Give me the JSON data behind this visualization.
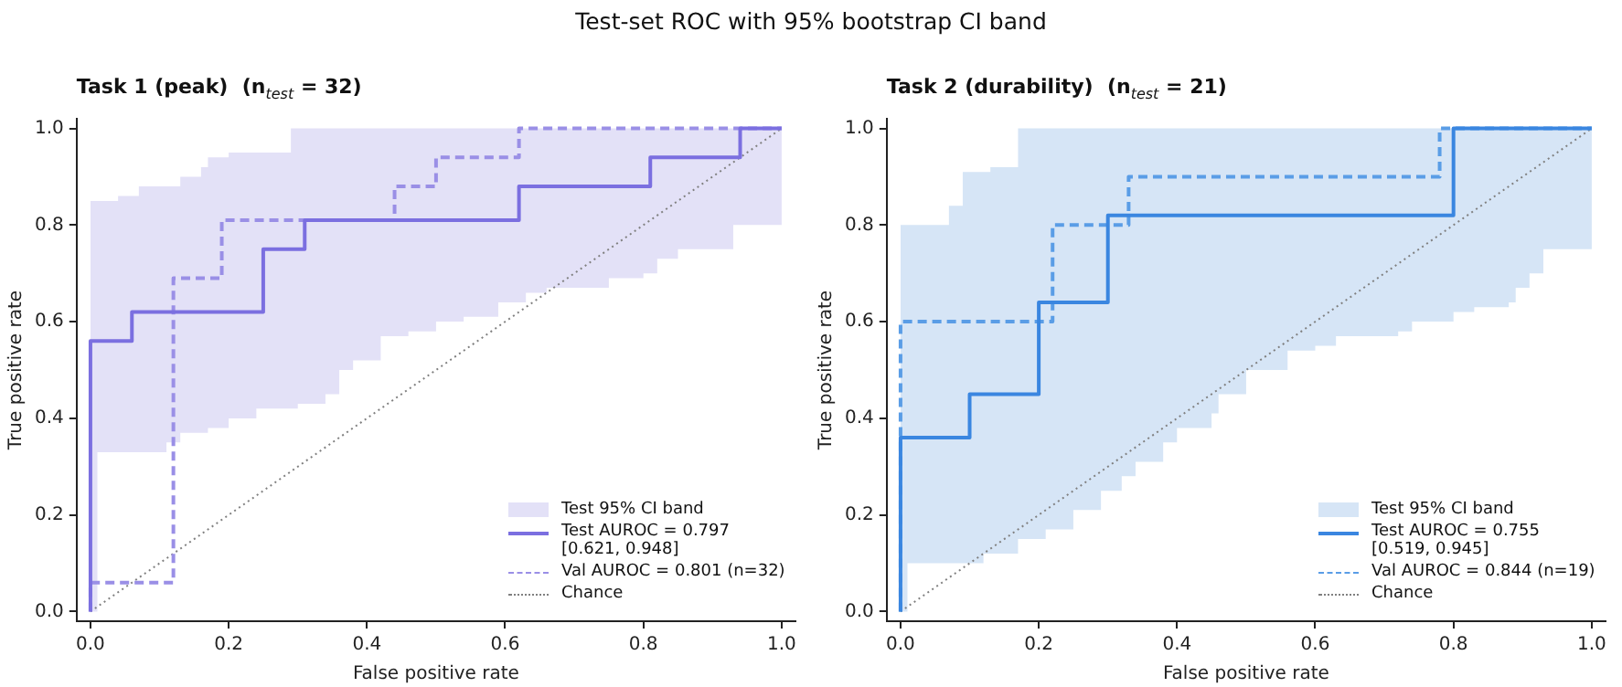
{
  "chart_data": [
    {
      "type": "step",
      "title": "Test-set ROC with 95% bootstrap CI band",
      "subtitle": "Task 1 (peak)  (n$_{test}$ = 32)",
      "xlabel": "False positive rate",
      "ylabel": "True positive rate",
      "xlim": [
        -0.02,
        1.02
      ],
      "ylim": [
        -0.02,
        1.02
      ],
      "xticks": [
        {
          "value": 0,
          "label": "0.0"
        },
        {
          "value": 0.2,
          "label": "0.2"
        },
        {
          "value": 0.4,
          "label": "0.4"
        },
        {
          "value": 0.6,
          "label": "0.6"
        },
        {
          "value": 0.8,
          "label": "0.8"
        },
        {
          "value": 1,
          "label": "1.0"
        }
      ],
      "yticks": [
        {
          "value": 0,
          "label": "0.0"
        },
        {
          "value": 0.2,
          "label": "0.2"
        },
        {
          "value": 0.4,
          "label": "0.4"
        },
        {
          "value": 0.6,
          "label": "0.6"
        },
        {
          "value": 0.8,
          "label": "0.8"
        },
        {
          "value": 1,
          "label": "1.0"
        }
      ],
      "grid": false,
      "legend": "bottom right",
      "series": [
        {
          "name": "Test 95% CI band",
          "type": "area",
          "color": "#e3e1f7",
          "x": [
            0,
            0.01,
            0.04,
            0.07,
            0.11,
            0.13,
            0.16,
            0.17,
            0.19,
            0.2,
            0.24,
            0.26,
            0.29,
            0.3,
            0.34,
            0.36,
            0.38,
            0.42,
            0.46,
            0.5,
            0.54,
            0.59,
            0.63,
            0.66,
            0.75,
            0.8,
            0.82,
            0.85,
            0.91,
            0.93,
            0.99,
            1
          ],
          "values": [
            null,
            null,
            null,
            null,
            null,
            null,
            null,
            null,
            null,
            null,
            null,
            null,
            null,
            null,
            null,
            null,
            null,
            null,
            null,
            null,
            null,
            null,
            null,
            null,
            null,
            null,
            null,
            null,
            null,
            null,
            null,
            null
          ],
          "lower": [
            0,
            0.33,
            0.33,
            0.33,
            0.35,
            0.37,
            0.37,
            0.38,
            0.38,
            0.4,
            0.42,
            0.42,
            0.42,
            0.43,
            0.45,
            0.5,
            0.52,
            0.57,
            0.58,
            0.6,
            0.61,
            0.64,
            0.66,
            0.67,
            0.69,
            0.7,
            0.73,
            0.75,
            0.75,
            0.8,
            0.8,
            1
          ],
          "upper": [
            0.85,
            0.85,
            0.86,
            0.88,
            0.88,
            0.9,
            0.92,
            0.94,
            0.94,
            0.95,
            0.95,
            0.95,
            1,
            1,
            1,
            1,
            1,
            1,
            1,
            1,
            1,
            1,
            1,
            1,
            1,
            1,
            1,
            1,
            1,
            1,
            1,
            1
          ]
        },
        {
          "name": "Test AUROC = 0.797\n[0.621, 0.948]",
          "type": "step",
          "color": "#7b6fe0",
          "line_style": "solid",
          "x": [
            0,
            0,
            0.06,
            0.25,
            0.31,
            0.62,
            0.81,
            0.94,
            1
          ],
          "values": [
            0,
            0.56,
            0.62,
            0.75,
            0.81,
            0.88,
            0.94,
            1,
            1
          ]
        },
        {
          "name": "Val AUROC = 0.801  (n=32)",
          "type": "step",
          "color": "#9a8fe6",
          "line_style": "dashed",
          "x": [
            0,
            0,
            0.12,
            0.19,
            0.44,
            0.5,
            0.62,
            1
          ],
          "values": [
            0,
            0.06,
            0.69,
            0.81,
            0.88,
            0.94,
            1,
            1
          ]
        },
        {
          "name": "Chance",
          "type": "line",
          "color": "#808080",
          "line_style": "dotted",
          "x": [
            0,
            1
          ],
          "values": [
            0,
            1
          ]
        }
      ]
    },
    {
      "type": "step",
      "subtitle": "Task 2 (durability)  (n$_{test}$ = 21)",
      "xlabel": "False positive rate",
      "ylabel": "True positive rate",
      "xlim": [
        -0.02,
        1.02
      ],
      "ylim": [
        -0.02,
        1.02
      ],
      "xticks": [
        {
          "value": 0,
          "label": "0.0"
        },
        {
          "value": 0.2,
          "label": "0.2"
        },
        {
          "value": 0.4,
          "label": "0.4"
        },
        {
          "value": 0.6,
          "label": "0.6"
        },
        {
          "value": 0.8,
          "label": "0.8"
        },
        {
          "value": 1,
          "label": "1.0"
        }
      ],
      "yticks": [
        {
          "value": 0,
          "label": "0.0"
        },
        {
          "value": 0.2,
          "label": "0.2"
        },
        {
          "value": 0.4,
          "label": "0.4"
        },
        {
          "value": 0.6,
          "label": "0.6"
        },
        {
          "value": 0.8,
          "label": "0.8"
        },
        {
          "value": 1,
          "label": "1.0"
        }
      ],
      "grid": false,
      "legend": "bottom right",
      "series": [
        {
          "name": "Test 95% CI band",
          "type": "area",
          "color": "#d6e5f6",
          "x": [
            0,
            0.01,
            0.07,
            0.09,
            0.1,
            0.12,
            0.13,
            0.17,
            0.21,
            0.25,
            0.29,
            0.32,
            0.34,
            0.38,
            0.4,
            0.45,
            0.46,
            0.5,
            0.56,
            0.6,
            0.63,
            0.72,
            0.74,
            0.8,
            0.83,
            0.88,
            0.89,
            0.91,
            0.93,
            0.99,
            1
          ],
          "values": [
            null,
            null,
            null,
            null,
            null,
            null,
            null,
            null,
            null,
            null,
            null,
            null,
            null,
            null,
            null,
            null,
            null,
            null,
            null,
            null,
            null,
            null,
            null,
            null,
            null,
            null,
            null,
            null,
            null,
            null,
            null
          ],
          "lower": [
            0,
            0.1,
            0.1,
            0.1,
            0.1,
            0.12,
            0.12,
            0.15,
            0.17,
            0.21,
            0.25,
            0.28,
            0.31,
            0.35,
            0.38,
            0.41,
            0.45,
            0.5,
            0.54,
            0.55,
            0.57,
            0.58,
            0.6,
            0.62,
            0.63,
            0.64,
            0.67,
            0.7,
            0.75,
            0.75,
            1
          ],
          "upper": [
            0.8,
            0.8,
            0.84,
            0.91,
            0.91,
            0.91,
            0.92,
            1,
            1,
            1,
            1,
            1,
            1,
            1,
            1,
            1,
            1,
            1,
            1,
            1,
            1,
            1,
            1,
            1,
            1,
            1,
            1,
            1,
            1,
            1,
            1
          ]
        },
        {
          "name": "Test AUROC = 0.755\n[0.519, 0.945]",
          "type": "step",
          "color": "#3a86e0",
          "line_style": "solid",
          "x": [
            0,
            0,
            0.1,
            0.2,
            0.3,
            0.8,
            1
          ],
          "values": [
            0,
            0.36,
            0.45,
            0.64,
            0.82,
            1,
            1
          ]
        },
        {
          "name": "Val AUROC = 0.844  (n=19)",
          "type": "step",
          "color": "#5a9de6",
          "line_style": "dashed",
          "x": [
            0,
            0,
            0.22,
            0.33,
            0.78,
            1
          ],
          "values": [
            0,
            0.6,
            0.8,
            0.9,
            1,
            1
          ]
        },
        {
          "name": "Chance",
          "type": "line",
          "color": "#808080",
          "line_style": "dotted",
          "x": [
            0,
            1
          ],
          "values": [
            0,
            1
          ]
        }
      ]
    }
  ]
}
